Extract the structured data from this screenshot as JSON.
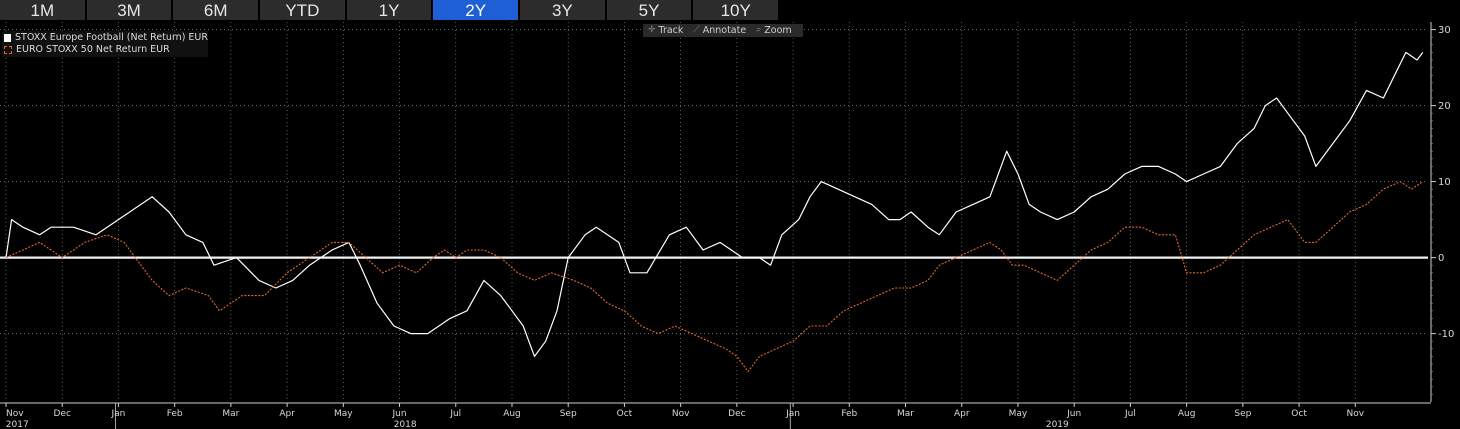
{
  "tabs": [
    {
      "label": "1M",
      "active": false
    },
    {
      "label": "3M",
      "active": false
    },
    {
      "label": "6M",
      "active": false
    },
    {
      "label": "YTD",
      "active": false
    },
    {
      "label": "1Y",
      "active": false
    },
    {
      "label": "2Y",
      "active": true
    },
    {
      "label": "3Y",
      "active": false
    },
    {
      "label": "5Y",
      "active": false
    },
    {
      "label": "10Y",
      "active": false
    }
  ],
  "tools": [
    {
      "label": "Track",
      "icon": "crosshair-icon",
      "glyph": "✛"
    },
    {
      "label": "Annotate",
      "icon": "pencil-icon",
      "glyph": "⟋"
    },
    {
      "label": "Zoom",
      "icon": "magnifier-icon",
      "glyph": "⌕"
    }
  ],
  "chart_data": {
    "type": "line",
    "ylim": [
      -19,
      31
    ],
    "yticks": [
      -10,
      0,
      10,
      20,
      30
    ],
    "y_axis_side": "right",
    "grid": true,
    "legend_position": "top-left",
    "months": [
      {
        "label": "Nov",
        "t": 0
      },
      {
        "label": "Dec",
        "t": 1
      },
      {
        "label": "Jan",
        "t": 2
      },
      {
        "label": "Feb",
        "t": 3
      },
      {
        "label": "Mar",
        "t": 4
      },
      {
        "label": "Apr",
        "t": 5
      },
      {
        "label": "May",
        "t": 6
      },
      {
        "label": "Jun",
        "t": 7
      },
      {
        "label": "Jul",
        "t": 8
      },
      {
        "label": "Aug",
        "t": 9
      },
      {
        "label": "Sep",
        "t": 10
      },
      {
        "label": "Oct",
        "t": 11
      },
      {
        "label": "Nov",
        "t": 12
      },
      {
        "label": "Dec",
        "t": 13
      },
      {
        "label": "Jan",
        "t": 14
      },
      {
        "label": "Feb",
        "t": 15
      },
      {
        "label": "Mar",
        "t": 16
      },
      {
        "label": "Apr",
        "t": 17
      },
      {
        "label": "May",
        "t": 18
      },
      {
        "label": "Jun",
        "t": 19
      },
      {
        "label": "Jul",
        "t": 20
      },
      {
        "label": "Aug",
        "t": 21
      },
      {
        "label": "Sep",
        "t": 22
      },
      {
        "label": "Oct",
        "t": 23
      },
      {
        "label": "Nov",
        "t": 24
      }
    ],
    "years": [
      {
        "label": "2017",
        "t": 0.2
      },
      {
        "label": "2018",
        "t": 7.1
      },
      {
        "label": "2019",
        "t": 18.7
      }
    ],
    "series": [
      {
        "name": "STOXX Europe Football (Net Return) EUR",
        "color": "#ffffff",
        "dashed": false,
        "points": [
          [
            0,
            0
          ],
          [
            0.1,
            5
          ],
          [
            0.3,
            4
          ],
          [
            0.6,
            3
          ],
          [
            0.8,
            4
          ],
          [
            1.2,
            4
          ],
          [
            1.6,
            3
          ],
          [
            2,
            5
          ],
          [
            2.4,
            7
          ],
          [
            2.6,
            8
          ],
          [
            2.9,
            6
          ],
          [
            3.2,
            3
          ],
          [
            3.5,
            2
          ],
          [
            3.7,
            -1
          ],
          [
            4.1,
            0
          ],
          [
            4.5,
            -3
          ],
          [
            4.8,
            -4
          ],
          [
            5.1,
            -3
          ],
          [
            5.4,
            -1
          ],
          [
            5.8,
            1
          ],
          [
            6.1,
            2
          ],
          [
            6.3,
            -1
          ],
          [
            6.6,
            -6
          ],
          [
            6.9,
            -9
          ],
          [
            7.2,
            -10
          ],
          [
            7.5,
            -10
          ],
          [
            7.9,
            -8
          ],
          [
            8.2,
            -7
          ],
          [
            8.5,
            -3
          ],
          [
            8.8,
            -5
          ],
          [
            9,
            -7
          ],
          [
            9.2,
            -9
          ],
          [
            9.4,
            -13
          ],
          [
            9.6,
            -11
          ],
          [
            9.8,
            -7
          ],
          [
            10,
            0
          ],
          [
            10.3,
            3
          ],
          [
            10.5,
            4
          ],
          [
            10.9,
            2
          ],
          [
            11.1,
            -2
          ],
          [
            11.4,
            -2
          ],
          [
            11.8,
            3
          ],
          [
            12.1,
            4
          ],
          [
            12.4,
            1
          ],
          [
            12.7,
            2
          ],
          [
            13.1,
            0
          ],
          [
            13.4,
            0
          ],
          [
            13.6,
            -1
          ],
          [
            13.8,
            3
          ],
          [
            14.1,
            5
          ],
          [
            14.3,
            8
          ],
          [
            14.5,
            10
          ],
          [
            14.8,
            9
          ],
          [
            15.1,
            8
          ],
          [
            15.4,
            7
          ],
          [
            15.7,
            5
          ],
          [
            15.9,
            5
          ],
          [
            16.1,
            6
          ],
          [
            16.4,
            4
          ],
          [
            16.6,
            3
          ],
          [
            16.9,
            6
          ],
          [
            17.2,
            7
          ],
          [
            17.5,
            8
          ],
          [
            17.7,
            12
          ],
          [
            17.8,
            14
          ],
          [
            18,
            11
          ],
          [
            18.2,
            7
          ],
          [
            18.4,
            6
          ],
          [
            18.7,
            5
          ],
          [
            19,
            6
          ],
          [
            19.3,
            8
          ],
          [
            19.6,
            9
          ],
          [
            19.9,
            11
          ],
          [
            20.2,
            12
          ],
          [
            20.5,
            12
          ],
          [
            20.8,
            11
          ],
          [
            21,
            10
          ],
          [
            21.3,
            11
          ],
          [
            21.6,
            12
          ],
          [
            21.9,
            15
          ],
          [
            22.2,
            17
          ],
          [
            22.4,
            20
          ],
          [
            22.6,
            21
          ],
          [
            22.8,
            19
          ],
          [
            23.1,
            16
          ],
          [
            23.3,
            12
          ],
          [
            23.6,
            15
          ],
          [
            23.9,
            18
          ],
          [
            24.2,
            22
          ],
          [
            24.5,
            21
          ],
          [
            24.7,
            24
          ],
          [
            24.9,
            27
          ],
          [
            25.1,
            26
          ],
          [
            25.2,
            27
          ]
        ]
      },
      {
        "name": "EURO STOXX 50 Net Return EUR",
        "color": "#e0692f",
        "dashed": true,
        "points": [
          [
            0,
            0
          ],
          [
            0.3,
            1
          ],
          [
            0.6,
            2
          ],
          [
            1,
            0
          ],
          [
            1.4,
            2
          ],
          [
            1.8,
            3
          ],
          [
            2.1,
            2
          ],
          [
            2.3,
            0
          ],
          [
            2.6,
            -3
          ],
          [
            2.9,
            -5
          ],
          [
            3.2,
            -4
          ],
          [
            3.6,
            -5
          ],
          [
            3.8,
            -7
          ],
          [
            4.2,
            -5
          ],
          [
            4.6,
            -5
          ],
          [
            5,
            -2
          ],
          [
            5.4,
            0
          ],
          [
            5.8,
            2
          ],
          [
            6.1,
            2
          ],
          [
            6.4,
            0
          ],
          [
            6.7,
            -2
          ],
          [
            7,
            -1
          ],
          [
            7.3,
            -2
          ],
          [
            7.6,
            0
          ],
          [
            7.8,
            1
          ],
          [
            8,
            0
          ],
          [
            8.2,
            1
          ],
          [
            8.5,
            1
          ],
          [
            8.8,
            0
          ],
          [
            9.1,
            -2
          ],
          [
            9.4,
            -3
          ],
          [
            9.7,
            -2
          ],
          [
            10.1,
            -3
          ],
          [
            10.4,
            -4
          ],
          [
            10.7,
            -6
          ],
          [
            11,
            -7
          ],
          [
            11.3,
            -9
          ],
          [
            11.6,
            -10
          ],
          [
            11.9,
            -9
          ],
          [
            12.2,
            -10
          ],
          [
            12.5,
            -11
          ],
          [
            12.8,
            -12
          ],
          [
            13,
            -13
          ],
          [
            13.2,
            -15
          ],
          [
            13.4,
            -13
          ],
          [
            13.7,
            -12
          ],
          [
            14,
            -11
          ],
          [
            14.3,
            -9
          ],
          [
            14.6,
            -9
          ],
          [
            14.9,
            -7
          ],
          [
            15.2,
            -6
          ],
          [
            15.5,
            -5
          ],
          [
            15.8,
            -4
          ],
          [
            16.1,
            -4
          ],
          [
            16.4,
            -3
          ],
          [
            16.6,
            -1
          ],
          [
            16.9,
            0
          ],
          [
            17.2,
            1
          ],
          [
            17.5,
            2
          ],
          [
            17.7,
            1
          ],
          [
            17.9,
            -1
          ],
          [
            18.1,
            -1
          ],
          [
            18.4,
            -2
          ],
          [
            18.7,
            -3
          ],
          [
            19,
            -1
          ],
          [
            19.3,
            1
          ],
          [
            19.6,
            2
          ],
          [
            19.9,
            4
          ],
          [
            20.2,
            4
          ],
          [
            20.5,
            3
          ],
          [
            20.8,
            3
          ],
          [
            21,
            -2
          ],
          [
            21.3,
            -2
          ],
          [
            21.6,
            -1
          ],
          [
            21.9,
            1
          ],
          [
            22.2,
            3
          ],
          [
            22.5,
            4
          ],
          [
            22.8,
            5
          ],
          [
            23.1,
            2
          ],
          [
            23.3,
            2
          ],
          [
            23.6,
            4
          ],
          [
            23.9,
            6
          ],
          [
            24.2,
            7
          ],
          [
            24.5,
            9
          ],
          [
            24.8,
            10
          ],
          [
            25,
            9
          ],
          [
            25.2,
            10
          ]
        ]
      }
    ]
  }
}
